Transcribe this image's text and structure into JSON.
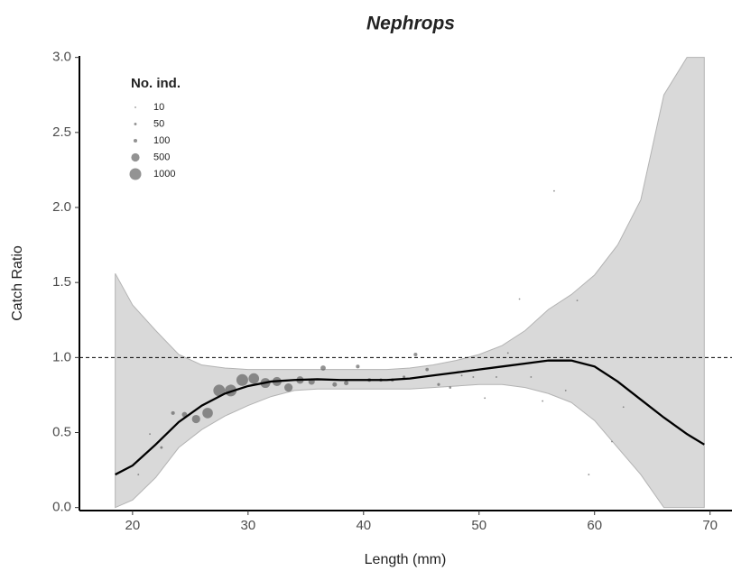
{
  "chart_data": {
    "type": "scatter",
    "title": "Nephrops",
    "x_label": "Length (mm)",
    "y_label": "Catch Ratio",
    "xlim": [
      15.4,
      71.9
    ],
    "ylim": [
      -0.02,
      3.01
    ],
    "xticks": [
      20,
      30,
      40,
      50,
      60,
      70
    ],
    "yticks": [
      {
        "value": 0,
        "label": "0.0"
      },
      0.5,
      {
        "value": 1,
        "label": "1.0"
      },
      1.5,
      {
        "value": 2,
        "label": "2.0"
      },
      2.5,
      {
        "value": 3,
        "label": "3.0"
      }
    ],
    "reference_line": 1,
    "points": {
      "color": "#595959",
      "x": [
        20.5,
        21.5,
        22.5,
        23.5,
        24.5,
        25.5,
        26.5,
        27.5,
        28.5,
        29.5,
        30.5,
        31.5,
        32.5,
        33.5,
        34.5,
        35.5,
        36.5,
        37.5,
        38.5,
        39.5,
        40.5,
        41.5,
        42.5,
        43.5,
        44.5,
        45.5,
        46.5,
        47.5,
        48.5,
        49.5,
        50.5,
        51.5,
        52.5,
        53.5,
        54.5,
        55.5,
        56.5,
        57.5,
        58.5,
        59.5,
        61.5,
        62.5
      ],
      "y": [
        0.22,
        0.49,
        0.4,
        0.63,
        0.62,
        0.59,
        0.63,
        0.78,
        0.78,
        0.85,
        0.86,
        0.83,
        0.84,
        0.8,
        0.85,
        0.84,
        0.93,
        0.82,
        0.83,
        0.94,
        0.85,
        0.85,
        0.85,
        0.87,
        1.02,
        0.92,
        0.82,
        0.8,
        0.88,
        0.87,
        0.73,
        0.87,
        1.03,
        1.39,
        0.87,
        0.71,
        2.11,
        0.78,
        1.38,
        0.22,
        0.44,
        0.67
      ],
      "n": [
        10,
        10,
        50,
        100,
        200,
        500,
        800,
        1000,
        1000,
        1000,
        800,
        700,
        600,
        500,
        400,
        300,
        200,
        150,
        150,
        100,
        100,
        80,
        80,
        60,
        100,
        80,
        60,
        40,
        20,
        20,
        20,
        20,
        20,
        15,
        10,
        10,
        10,
        10,
        10,
        10,
        5,
        5
      ]
    },
    "size_legend": {
      "title": "No. ind.",
      "values": [
        10,
        50,
        100,
        500,
        1000
      ]
    },
    "fit": {
      "color": "#000000",
      "band_color": "#d9d9d9",
      "x": [
        18.5,
        20,
        22,
        24,
        26,
        28,
        30,
        32,
        34,
        36,
        38,
        40,
        42,
        44,
        46,
        48,
        50,
        52,
        54,
        56,
        58,
        60,
        62,
        64,
        66,
        68,
        69.5
      ],
      "y": [
        0.22,
        0.28,
        0.42,
        0.57,
        0.68,
        0.76,
        0.81,
        0.84,
        0.85,
        0.855,
        0.85,
        0.85,
        0.85,
        0.86,
        0.88,
        0.9,
        0.92,
        0.94,
        0.96,
        0.98,
        0.98,
        0.94,
        0.84,
        0.72,
        0.6,
        0.49,
        0.42
      ],
      "lower": [
        0.0,
        0.05,
        0.2,
        0.4,
        0.52,
        0.61,
        0.68,
        0.74,
        0.78,
        0.79,
        0.79,
        0.79,
        0.79,
        0.79,
        0.8,
        0.81,
        0.82,
        0.82,
        0.8,
        0.76,
        0.7,
        0.58,
        0.4,
        0.22,
        0.0,
        0.0,
        0.0
      ],
      "upper": [
        1.56,
        1.35,
        1.18,
        1.02,
        0.95,
        0.93,
        0.92,
        0.92,
        0.92,
        0.92,
        0.92,
        0.92,
        0.92,
        0.93,
        0.95,
        0.98,
        1.02,
        1.08,
        1.18,
        1.32,
        1.42,
        1.55,
        1.75,
        2.05,
        2.75,
        3.0,
        3.0
      ]
    }
  }
}
